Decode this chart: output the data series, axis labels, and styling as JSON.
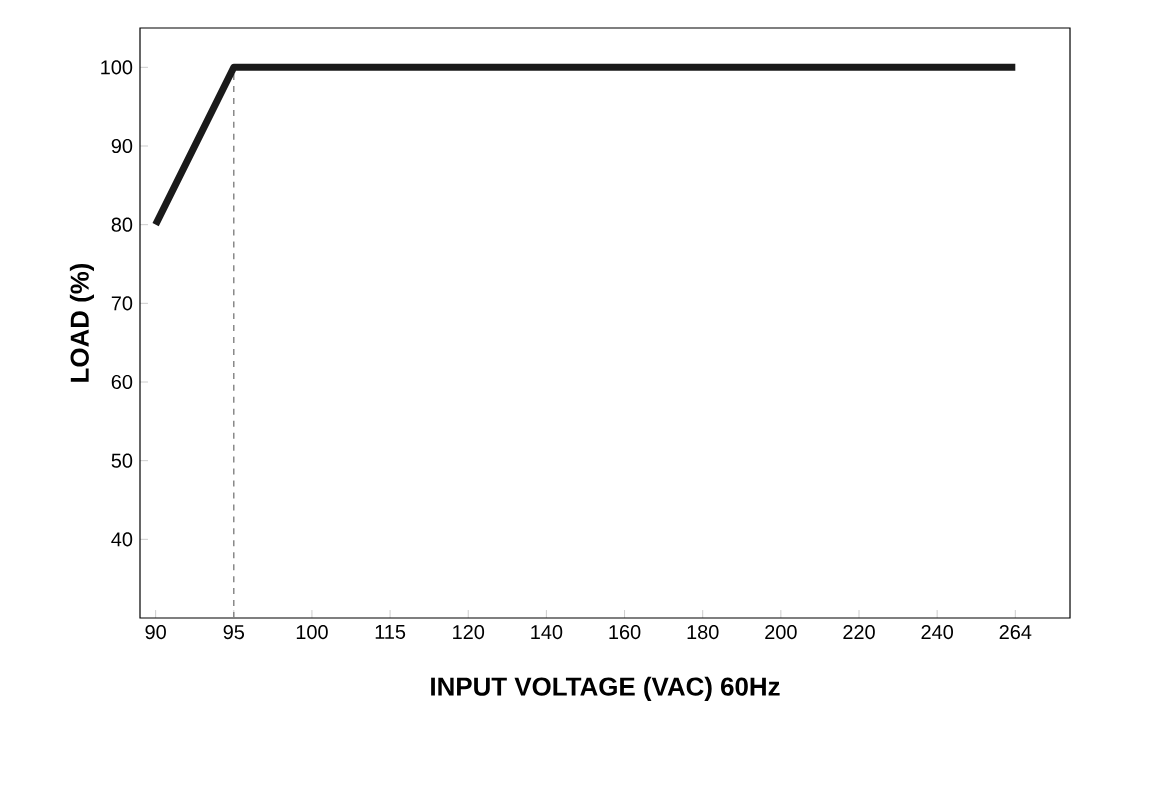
{
  "chart_data": {
    "type": "line",
    "xlabel": "INPUT VOLTAGE (VAC) 60Hz",
    "ylabel": "LOAD (%)",
    "categories": [
      "90",
      "95",
      "100",
      "115",
      "120",
      "140",
      "160",
      "180",
      "200",
      "220",
      "240",
      "264"
    ],
    "values": [
      80,
      100,
      100,
      100,
      100,
      100,
      100,
      100,
      100,
      100,
      100,
      100
    ],
    "color": "#1a1a1a",
    "line_style": "solid",
    "marker": "none",
    "grid": false,
    "ylim": [
      30,
      105
    ],
    "yticks": [
      40,
      50,
      60,
      70,
      80,
      90,
      100
    ],
    "ref_lines": [
      {
        "axis": "x",
        "value": "95",
        "color": "#808080",
        "line_style": "dashed"
      }
    ]
  }
}
